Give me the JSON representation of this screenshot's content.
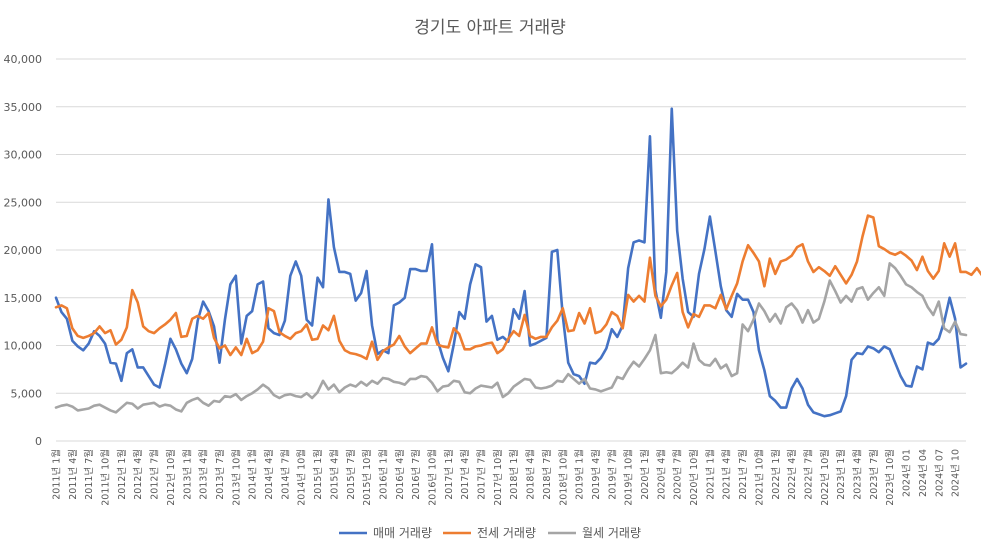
{
  "chart_data": {
    "type": "line",
    "title": "경기도 아파트 거래량",
    "ylim": [
      0,
      40000
    ],
    "y_ticks": [
      "0",
      "5,000",
      "10,000",
      "15,000",
      "20,000",
      "25,000",
      "30,000",
      "35,000",
      "40,000"
    ],
    "grid": true,
    "legend_position": "bottom",
    "x_tick_labels": [
      "2011년 1월",
      "2011년 4월",
      "2011년 7월",
      "2011년 10월",
      "2012년 1월",
      "2012년 4월",
      "2012년 7월",
      "2012년 10월",
      "2013년 1월",
      "2013년 4월",
      "2013년 7월",
      "2013년 10월",
      "2014년 1월",
      "2014년 4월",
      "2014년 7월",
      "2014년 10월",
      "2015년 1월",
      "2015년 4월",
      "2015년 7월",
      "2015년 10월",
      "2016년 1월",
      "2016년 4월",
      "2016년 7월",
      "2016년 10월",
      "2017년 1월",
      "2017년 4월",
      "2017년 7월",
      "2017년 10월",
      "2018년 1월",
      "2018년 4월",
      "2018년 7월",
      "2018년 10월",
      "2019년 1월",
      "2019년 4월",
      "2019년 7월",
      "2019년 10월",
      "2020년 1월",
      "2020년 4월",
      "2020년 7월",
      "2020년 10월",
      "2021년 1월",
      "2021년 4월",
      "2021년 7월",
      "2021년 10월",
      "2022년 1월",
      "2022년 4월",
      "2022년 7월",
      "2022년 10월",
      "2023년 1월",
      "2023년 4월",
      "2023년 7월",
      "2023년 10월",
      "2024년 01",
      "2024년 04",
      "2024년 07",
      "2024년 10"
    ],
    "series": [
      {
        "name": "매매 거래량",
        "color": "#4472C4",
        "values": [
          15000,
          13500,
          12800,
          10500,
          9900,
          9500,
          10200,
          11500,
          11000,
          10200,
          8200,
          8100,
          6300,
          9200,
          9600,
          7700,
          7700,
          6800,
          5900,
          5600,
          8000,
          10700,
          9600,
          8100,
          7100,
          8600,
          12600,
          14600,
          13600,
          12000,
          8200,
          12700,
          16400,
          17300,
          10200,
          13100,
          13600,
          16400,
          16700,
          11800,
          11300,
          11100,
          12600,
          17300,
          18800,
          17300,
          12700,
          12100,
          17100,
          16100,
          25300,
          20300,
          17700,
          17700,
          17500,
          14700,
          15500,
          17800,
          12100,
          9100,
          9500,
          9200,
          14200,
          14500,
          15000,
          18000,
          18000,
          17800,
          17800,
          20600,
          10600,
          8700,
          7300,
          10100,
          13500,
          12800,
          16400,
          18500,
          18200,
          12500,
          13100,
          10600,
          10900,
          10400,
          13800,
          12800,
          15700,
          10000,
          10200,
          10500,
          10800,
          19800,
          20000,
          13100,
          8200,
          7000,
          6800,
          6000,
          8200,
          8100,
          8700,
          9700,
          11700,
          10900,
          12100,
          18100,
          20800,
          21000,
          20800,
          31900,
          15800,
          12900,
          17700,
          34800,
          22000,
          17000,
          13500,
          13000,
          17500,
          20100,
          23500,
          19900,
          16200,
          13700,
          13000,
          15400,
          14800,
          14800,
          13500,
          9500,
          7400,
          4700,
          4200,
          3500,
          3500,
          5500,
          6500,
          5500,
          3800,
          3000,
          2800,
          2600,
          2700,
          2900,
          3100,
          4700,
          8500,
          9200,
          9100,
          9900,
          9700,
          9300,
          9900,
          9600,
          8200,
          6800,
          5800,
          5700,
          7800,
          7500,
          10300,
          10100,
          10700,
          12500,
          15000,
          12800,
          7700,
          8100
        ]
      },
      {
        "name": "전세 거래량",
        "color": "#ED7D31",
        "values": [
          14000,
          14200,
          13900,
          11800,
          11000,
          10800,
          11000,
          11300,
          12000,
          11300,
          11600,
          10100,
          10600,
          11900,
          15800,
          14500,
          12000,
          11500,
          11300,
          11800,
          12200,
          12700,
          13400,
          10900,
          11000,
          12800,
          13100,
          12800,
          13400,
          10800,
          9700,
          10000,
          9000,
          9800,
          9000,
          10700,
          9200,
          9500,
          10400,
          13900,
          13600,
          11400,
          11000,
          10700,
          11300,
          11500,
          12200,
          10600,
          10700,
          12100,
          11600,
          13100,
          10500,
          9500,
          9200,
          9100,
          8900,
          8600,
          10400,
          8500,
          9400,
          9800,
          10100,
          11000,
          9900,
          9200,
          9700,
          10200,
          10200,
          11900,
          10100,
          9900,
          9800,
          11800,
          11200,
          9600,
          9600,
          9900,
          10000,
          10200,
          10300,
          9200,
          9600,
          10700,
          11500,
          11000,
          13200,
          11000,
          10700,
          10900,
          10900,
          11900,
          12600,
          13900,
          11500,
          11600,
          13400,
          12300,
          13900,
          11300,
          11500,
          12200,
          13500,
          13100,
          11800,
          15300,
          14600,
          15200,
          14600,
          19200,
          15200,
          14100,
          14800,
          16300,
          17600,
          13500,
          11900,
          13300,
          13000,
          14200,
          14200,
          13900,
          15300,
          13800,
          15200,
          16500,
          18800,
          20500,
          19700,
          18800,
          16200,
          19100,
          17500,
          18800,
          19000,
          19400,
          20300,
          20600,
          18800,
          17700,
          18200,
          17800,
          17300,
          18300,
          17400,
          16500,
          17400,
          18800,
          21400,
          23600,
          23400,
          20400,
          20100,
          19700,
          19500,
          19800,
          19400,
          18900,
          17900,
          19300,
          17800,
          17000,
          17800,
          20700,
          19300,
          20700,
          17700,
          17700,
          17400,
          18100,
          17300,
          15500,
          12200
        ]
      },
      {
        "name": "월세 거래량",
        "color": "#A5A5A5",
        "values": [
          3500,
          3700,
          3800,
          3600,
          3200,
          3300,
          3400,
          3700,
          3800,
          3500,
          3200,
          3000,
          3500,
          4000,
          3900,
          3400,
          3800,
          3900,
          4000,
          3600,
          3800,
          3700,
          3300,
          3100,
          4000,
          4300,
          4500,
          4000,
          3700,
          4200,
          4100,
          4700,
          4600,
          4900,
          4300,
          4700,
          5000,
          5400,
          5900,
          5500,
          4800,
          4500,
          4800,
          4900,
          4700,
          4600,
          5000,
          4500,
          5100,
          6300,
          5400,
          5900,
          5100,
          5600,
          5900,
          5700,
          6200,
          5800,
          6300,
          6000,
          6600,
          6500,
          6200,
          6100,
          5900,
          6500,
          6500,
          6800,
          6700,
          6100,
          5200,
          5700,
          5800,
          6300,
          6200,
          5100,
          5000,
          5500,
          5800,
          5700,
          5600,
          6100,
          4600,
          5000,
          5700,
          6100,
          6500,
          6400,
          5600,
          5500,
          5600,
          5800,
          6300,
          6200,
          7000,
          6500,
          6000,
          6500,
          5500,
          5400,
          5200,
          5400,
          5600,
          6700,
          6500,
          7500,
          8300,
          7800,
          8600,
          9500,
          11100,
          7100,
          7200,
          7100,
          7600,
          8200,
          7700,
          10200,
          8500,
          8000,
          7900,
          8600,
          7600,
          8000,
          6800,
          7100,
          12200,
          11500,
          12700,
          14400,
          13600,
          12500,
          13300,
          12300,
          14000,
          14400,
          13700,
          12400,
          13700,
          12400,
          12800,
          14600,
          16800,
          15700,
          14500,
          15200,
          14600,
          15900,
          16100,
          14800,
          15500,
          16100,
          15200,
          18600,
          18100,
          17300,
          16400,
          16100,
          15600,
          15200,
          14000,
          13200,
          14600,
          11800,
          11400,
          12500,
          11200,
          11100
        ]
      }
    ]
  }
}
